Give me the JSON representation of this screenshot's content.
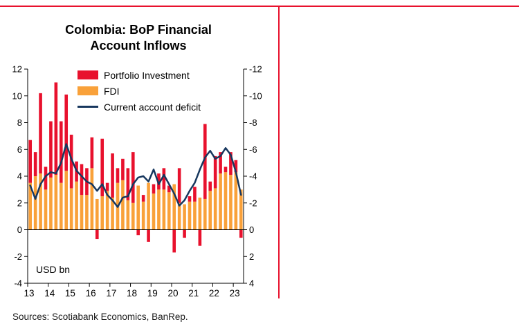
{
  "header": {
    "title_line1": "Colombia: BoP Financial",
    "title_line2": "Account Inflows",
    "unit_label": "USD bn"
  },
  "footer": {
    "sources": "Sources: Scotiabank Economics, BanRep."
  },
  "colors": {
    "accent_red": "#e8112d",
    "bar_portfolio": "#e8112d",
    "bar_fdi": "#f9a13a",
    "line_current_account": "#17375e",
    "axis": "#000000"
  },
  "chart_data": {
    "type": "bar",
    "subtype": "stacked-bars-with-line-on-inverted-right-axis",
    "title": "Colombia: BoP Financial Account Inflows",
    "unit": "USD bn",
    "legend_position": "top-left-inside-plot",
    "grid": false,
    "x": [
      "2013Q1",
      "2013Q2",
      "2013Q3",
      "2013Q4",
      "2014Q1",
      "2014Q2",
      "2014Q3",
      "2014Q4",
      "2015Q1",
      "2015Q2",
      "2015Q3",
      "2015Q4",
      "2016Q1",
      "2016Q2",
      "2016Q3",
      "2016Q4",
      "2017Q1",
      "2017Q2",
      "2017Q3",
      "2017Q4",
      "2018Q1",
      "2018Q2",
      "2018Q3",
      "2018Q4",
      "2019Q1",
      "2019Q2",
      "2019Q3",
      "2019Q4",
      "2020Q1",
      "2020Q2",
      "2020Q3",
      "2020Q4",
      "2021Q1",
      "2021Q2",
      "2021Q3",
      "2021Q4",
      "2022Q1",
      "2022Q2",
      "2022Q3",
      "2022Q4",
      "2023Q1",
      "2023Q2"
    ],
    "x_tick_labels": [
      "13",
      "14",
      "15",
      "16",
      "17",
      "18",
      "19",
      "20",
      "21",
      "22",
      "23"
    ],
    "left_axis": {
      "min": -4,
      "max": 12,
      "step": 2
    },
    "right_axis": {
      "labels_top_to_bottom": [
        "-12",
        "-10",
        "-8",
        "-6",
        "-4",
        "-2",
        "0",
        "2",
        "4"
      ],
      "note": "inverted mirror of left axis; current account deficit plotted against it"
    },
    "series": [
      {
        "name": "Portfolio Investment",
        "type": "bar",
        "stack": "inflows",
        "color": "#e8112d",
        "values": [
          3.2,
          1.8,
          6.0,
          1.7,
          4.2,
          6.9,
          4.6,
          5.7,
          4.0,
          1.5,
          2.3,
          2.0,
          2.3,
          -0.7,
          4.3,
          0.6,
          3.3,
          1.1,
          1.6,
          2.4,
          3.8,
          -0.4,
          0.5,
          -0.9,
          0.7,
          1.2,
          1.6,
          0.5,
          -1.7,
          2.6,
          -0.6,
          0.4,
          1.1,
          -1.2,
          5.6,
          0.7,
          2.4,
          1.6,
          0.4,
          1.7,
          0.9,
          -0.6
        ]
      },
      {
        "name": "FDI",
        "type": "bar",
        "stack": "inflows",
        "color": "#f9a13a",
        "values": [
          3.5,
          4.0,
          4.2,
          3.0,
          3.9,
          4.1,
          3.5,
          4.4,
          3.1,
          3.6,
          2.6,
          2.6,
          4.6,
          2.3,
          2.5,
          2.9,
          2.4,
          3.5,
          3.7,
          2.2,
          2.0,
          3.3,
          2.1,
          3.5,
          2.7,
          3.0,
          3.0,
          2.8,
          3.4,
          2.0,
          1.9,
          2.1,
          2.1,
          2.4,
          2.3,
          2.9,
          3.1,
          4.2,
          4.3,
          4.1,
          4.3,
          3.0
        ]
      },
      {
        "name": "Current account deficit",
        "type": "line",
        "axis": "right",
        "color": "#17375e",
        "values": [
          -3.3,
          -2.3,
          -3.4,
          -4.0,
          -4.3,
          -4.2,
          -5.0,
          -6.4,
          -5.3,
          -4.4,
          -4.0,
          -3.6,
          -3.4,
          -2.9,
          -3.4,
          -2.6,
          -2.2,
          -1.7,
          -2.4,
          -2.5,
          -3.4,
          -3.9,
          -4.0,
          -3.6,
          -4.5,
          -3.4,
          -4.1,
          -3.4,
          -2.7,
          -1.8,
          -2.2,
          -2.9,
          -3.5,
          -4.5,
          -5.4,
          -5.9,
          -5.3,
          -5.5,
          -6.1,
          -5.6,
          -4.3,
          -2.6
        ]
      }
    ]
  }
}
